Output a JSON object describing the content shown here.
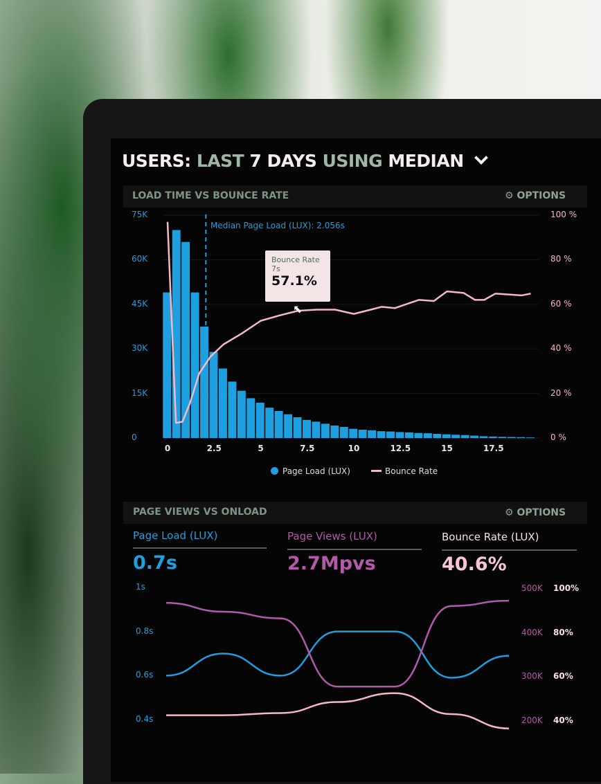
{
  "header": {
    "title_parts": [
      "USERS:",
      "LAST",
      "7 DAYS",
      "USING",
      "MEDIAN"
    ],
    "dropdown_icon": "chevron-down-icon"
  },
  "panel1": {
    "title": "LOAD TIME VS BOUNCE RATE",
    "options": "OPTIONS",
    "options_icon": "gear-icon"
  },
  "panel2": {
    "title": "PAGE VIEWS VS ONLOAD",
    "options": "OPTIONS",
    "options_icon": "gear-icon"
  },
  "colors": {
    "blue": "#1e9fe0",
    "pink": "#f4b8c8",
    "purple": "#b05aa8"
  },
  "chart_data": [
    {
      "type": "bar+line",
      "x_ticks": [
        "0",
        "2.5",
        "5",
        "7.5",
        "10",
        "12.5",
        "15",
        "17.5"
      ],
      "x_tick_values": [
        0,
        2.5,
        5,
        7.5,
        10,
        12.5,
        15,
        17.5
      ],
      "y_left_ticks": [
        "75K",
        "60K",
        "45K",
        "30K",
        "15K",
        "0"
      ],
      "y_left_range": [
        0,
        75000
      ],
      "y_right_ticks": [
        "100 %",
        "80 %",
        "60 %",
        "40 %",
        "20 %",
        "0 %"
      ],
      "y_right_range": [
        0,
        100
      ],
      "grid": true,
      "annotation": "Median Page Load (LUX): 2.056s",
      "median_x": 2.056,
      "tooltip": {
        "series": "Bounce Rate",
        "x": "7s",
        "value": "57.1%"
      },
      "legend": [
        "Page Load (LUX)",
        "Bounce Rate"
      ],
      "series": [
        {
          "name": "Page Load (LUX)",
          "type": "bar",
          "x_step": 0.5,
          "values": [
            49000,
            70000,
            66000,
            49000,
            37500,
            29000,
            23400,
            19000,
            15900,
            13400,
            11900,
            10200,
            9100,
            8000,
            7000,
            6100,
            5500,
            4800,
            4200,
            3750,
            3100,
            2800,
            2600,
            2300,
            2200,
            2000,
            1900,
            1700,
            1600,
            1400,
            1250,
            1100,
            1000,
            800,
            600,
            500,
            400,
            350,
            300,
            200
          ]
        },
        {
          "name": "Bounce Rate",
          "type": "line",
          "x": [
            0,
            0.45,
            0.8,
            1.2,
            1.7,
            2.3,
            3,
            4,
            5,
            6,
            7,
            8,
            9,
            10,
            11,
            11.5,
            12.2,
            13.5,
            14.3,
            15,
            15.9,
            16.5,
            17,
            17.6,
            18,
            19,
            19.5
          ],
          "y": [
            97,
            6.8,
            7.3,
            15.6,
            29,
            36.5,
            42,
            47,
            52.6,
            55,
            57.1,
            57.6,
            57.6,
            55.7,
            57.8,
            58.9,
            58.3,
            62,
            61.5,
            65.8,
            65.1,
            62,
            62,
            64.8,
            64.6,
            64,
            64.8
          ]
        }
      ]
    },
    {
      "type": "line",
      "kpis": [
        {
          "label": "Page Load (LUX)",
          "value": "0.7s"
        },
        {
          "label": "Page Views (LUX)",
          "value": "2.7Mpvs"
        },
        {
          "label": "Bounce Rate (LUX)",
          "value": "40.6%"
        }
      ],
      "y_left_ticks": [
        "1s",
        "0.8s",
        "0.6s",
        "0.4s"
      ],
      "y_left_range": [
        0.4,
        1
      ],
      "y_right1_ticks": [
        "500K",
        "400K",
        "300K",
        "200K"
      ],
      "y_right1_range": [
        200000,
        500000
      ],
      "y_right2_ticks": [
        "100%",
        "80%",
        "60%",
        "40%"
      ],
      "y_right2_range": [
        40,
        100
      ],
      "series": [
        {
          "name": "Page Load (LUX)",
          "values": [
            0.6,
            0.7,
            0.6,
            0.8,
            0.8,
            0.59,
            0.69
          ]
        },
        {
          "name": "Page Views (LUX)",
          "values": [
            465000,
            445000,
            430000,
            275000,
            275000,
            458000,
            470000
          ]
        },
        {
          "name": "Bounce Rate (LUX)",
          "values": [
            42,
            42,
            43,
            48,
            52,
            42.5,
            36
          ]
        }
      ]
    }
  ]
}
